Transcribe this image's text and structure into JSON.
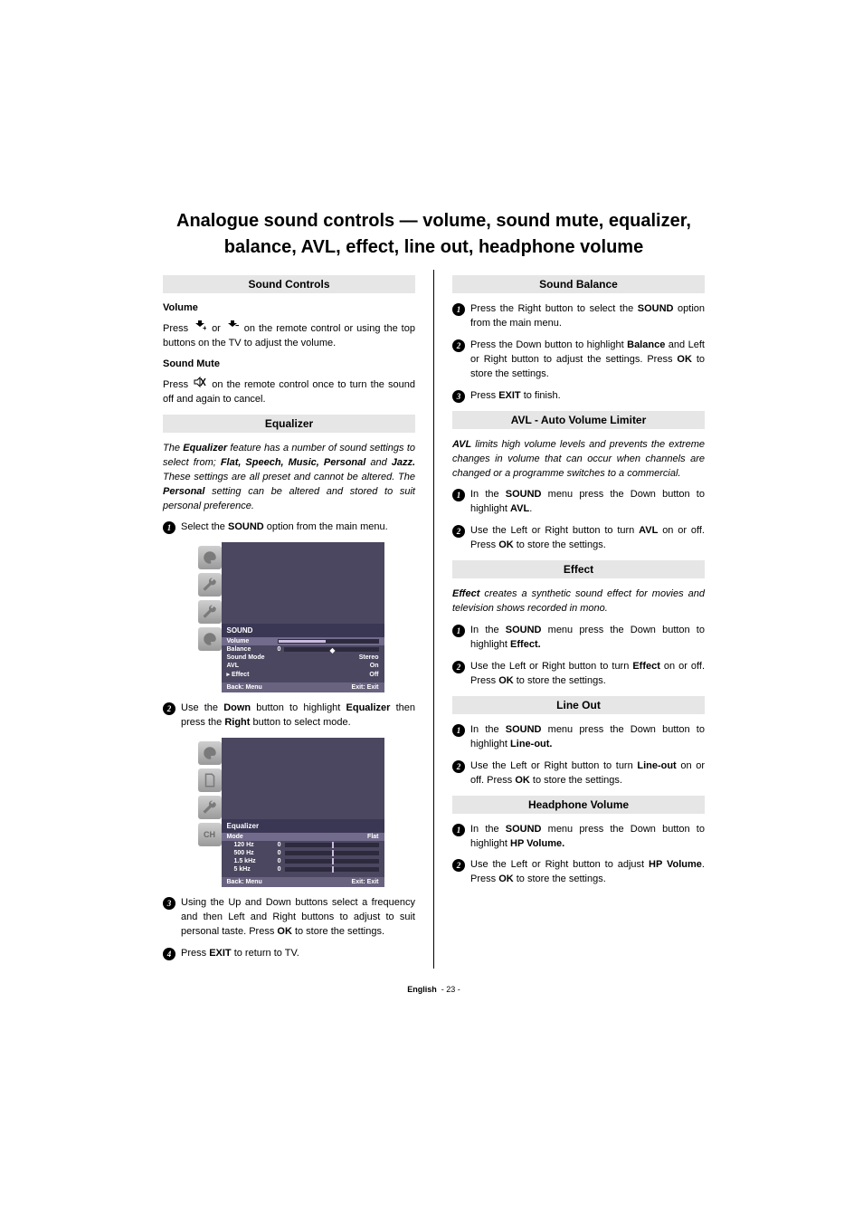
{
  "title": "Analogue sound controls — volume, sound mute, equalizer, balance, AVL, effect, line out, headphone volume",
  "footer": {
    "lang": "English",
    "page": "- 23 -"
  },
  "left": {
    "soundControls": {
      "title": "Sound Controls",
      "volumeHead": "Volume",
      "volumeBody1a": "Press ",
      "volumeBody1b": " or ",
      "volumeBody1c": " on the remote control or using the top buttons on the TV to adjust the volume.",
      "muteHead": "Sound Mute",
      "muteBody1a": "Press ",
      "muteBody1b": " on the remote control once to turn the sound off and again to cancel."
    },
    "equalizer": {
      "title": "Equalizer",
      "introHtml": "The <b>Equalizer</b> feature has a number of sound settings to select from; <b>Flat, Speech, Music, Personal</b> and <b>Jazz.</b> These settings are all preset and cannot be altered. The <b>Personal</b> setting can be altered and stored to suit personal preference.",
      "step1Html": "Select the <b>SOUND</b> option from the main menu.",
      "step2Html": "Use the <b>Down</b> button to highlight <b>Equalizer</b> then press the <b>Right</b> button to select mode.",
      "step3Html": "Using the Up and Down buttons select a frequency and then Left and Right buttons to adjust to suit personal taste. Press <b>OK</b> to store the settings.",
      "step4Html": "Press <b>EXIT</b> to return to TV."
    },
    "osd1": {
      "title": "SOUND",
      "rows": [
        {
          "lab": "Volume",
          "type": "bar",
          "fillPct": 48,
          "hl": true
        },
        {
          "lab": "Balance",
          "zero": "0",
          "type": "slider",
          "knobPct": 48
        },
        {
          "lab": "Sound Mode",
          "val": "Stereo"
        },
        {
          "lab": "AVL",
          "val": "On"
        },
        {
          "lab": "Effect",
          "val": "Off",
          "bullet": true
        }
      ],
      "back": "Back: Menu",
      "exit": "Exit: Exit"
    },
    "osd2": {
      "title": "Equalizer",
      "modeRow": {
        "lab": "Mode",
        "val": "Flat",
        "hl": true
      },
      "eqRows": [
        {
          "freq": "120 Hz"
        },
        {
          "freq": "500 Hz"
        },
        {
          "freq": "1.5 kHz"
        },
        {
          "freq": "5 kHz"
        }
      ],
      "back": "Back: Menu",
      "exit": "Exit: Exit"
    }
  },
  "right": {
    "balance": {
      "title": "Sound Balance",
      "step1Html": "Press the Right button to select the <b>SOUND</b> option from the main menu.",
      "step2Html": "Press the Down button to highlight <b>Balance</b> and Left or Right button to adjust the settings. Press <b>OK</b> to store the settings.",
      "step3Html": "Press <b>EXIT</b> to finish."
    },
    "avl": {
      "title": "AVL - Auto Volume Limiter",
      "introHtml": "<b>AVL</b> limits high volume levels and prevents the extreme changes in volume that can occur when channels are changed or a programme switches to a commercial.",
      "step1Html": "In the <b>SOUND</b> menu press the Down button to highlight <b>AVL</b>.",
      "step2Html": "Use the Left or Right button to turn <b>AVL</b> on or off. Press <b>OK</b> to store the settings."
    },
    "effect": {
      "title": "Effect",
      "introHtml": "<b>Effect</b> creates a synthetic sound effect for movies and television shows recorded in mono.",
      "step1Html": "In the <b>SOUND</b> menu press the Down button to highlight <b>Effect.</b>",
      "step2Html": "Use the Left or Right button to turn <b>Effect</b> on or off. Press <b>OK</b> to store the settings."
    },
    "lineout": {
      "title": "Line Out",
      "step1Html": "In the <b>SOUND</b> menu press the Down button to highlight <b>Line-out.</b>",
      "step2Html": "Use the Left or Right button to turn <b>Line-out</b> on or off. Press <b>OK</b> to store the settings."
    },
    "hp": {
      "title": "Headphone Volume",
      "step1Html": "In the <b>SOUND</b> menu press the Down button to highlight <b>HP Volume.</b>",
      "step2Html": "Use the Left or Right button to adjust <b>HP Volume</b>. Press <b>OK</b> to store the settings."
    }
  }
}
